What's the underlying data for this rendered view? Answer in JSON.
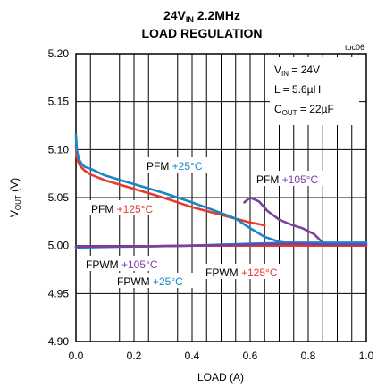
{
  "chart_data": {
    "type": "line",
    "title": {
      "line1_main": "24V",
      "line1_sub": "IN",
      "line1_rest": " 2.2MHz",
      "line2": "LOAD REGULATION"
    },
    "figure_tag": "toc06",
    "xlabel": "LOAD (A)",
    "ylabel": {
      "main": "V",
      "sub": "OUT",
      "rest": " (V)"
    },
    "xlim": [
      0,
      1.0
    ],
    "ylim": [
      4.9,
      5.2
    ],
    "x_ticks": [
      0.0,
      0.2,
      0.4,
      0.6,
      0.8,
      1.0
    ],
    "x_tick_labels": [
      "0.0",
      "0.2",
      "0.4",
      "0.6",
      "0.8",
      "1.0"
    ],
    "y_ticks": [
      4.9,
      4.95,
      5.0,
      5.05,
      5.1,
      5.15,
      5.2
    ],
    "y_tick_labels": [
      "4.90",
      "4.95",
      "5.00",
      "5.05",
      "5.10",
      "5.15",
      "5.20"
    ],
    "grid": true,
    "conditions": [
      {
        "main": "V",
        "sub": "IN",
        "rest": " = 24V"
      },
      {
        "main": "L = 5.6µH",
        "sub": "",
        "rest": ""
      },
      {
        "main": "C",
        "sub": "OUT",
        "rest": " = 22µF"
      }
    ],
    "series": [
      {
        "color": "#e8392a",
        "x": [
          0.0,
          0.003,
          0.01,
          0.02,
          0.03,
          0.05,
          0.1,
          0.2,
          0.3,
          0.4,
          0.5,
          0.55,
          0.6,
          0.62,
          0.65
        ],
        "y": [
          5.105,
          5.092,
          5.085,
          5.081,
          5.078,
          5.074,
          5.068,
          5.059,
          5.05,
          5.04,
          5.032,
          5.028,
          5.024,
          5.023,
          5.021
        ]
      },
      {
        "color": "#1a86c7",
        "x": [
          0.0,
          0.003,
          0.01,
          0.02,
          0.03,
          0.05,
          0.1,
          0.2,
          0.3,
          0.4,
          0.5,
          0.55,
          0.6,
          0.65,
          0.7,
          0.72,
          0.75
        ],
        "y": [
          5.115,
          5.1,
          5.09,
          5.085,
          5.082,
          5.08,
          5.073,
          5.064,
          5.055,
          5.045,
          5.034,
          5.028,
          5.018,
          5.009,
          5.004,
          5.003,
          5.003
        ]
      },
      {
        "color": "#7b3fa0",
        "x": [
          0.58,
          0.6,
          0.63,
          0.66,
          0.7,
          0.74,
          0.78,
          0.82,
          0.84,
          0.86
        ],
        "y": [
          5.045,
          5.05,
          5.046,
          5.036,
          5.027,
          5.022,
          5.018,
          5.012,
          5.006,
          5.0
        ]
      },
      {
        "color": "#e8392a",
        "x": [
          0.0,
          0.1,
          0.2,
          0.4,
          0.6,
          0.75,
          0.85,
          1.0
        ],
        "y": [
          4.999,
          4.999,
          4.999,
          5.0,
          5.0,
          5.0,
          5.0,
          5.0
        ]
      },
      {
        "color": "#1a86c7",
        "x": [
          0.0,
          0.2,
          0.4,
          0.6,
          0.75,
          0.9,
          1.0
        ],
        "y": [
          4.998,
          4.999,
          5.0,
          5.002,
          5.003,
          5.003,
          5.003
        ]
      },
      {
        "color": "#7b3fa0",
        "x": [
          0.0,
          0.2,
          0.4,
          0.6,
          0.75,
          0.86,
          1.0
        ],
        "y": [
          4.999,
          4.999,
          5.0,
          5.001,
          5.002,
          5.001,
          5.001
        ]
      }
    ],
    "annotations": [
      {
        "base": "PFM ",
        "highlight": "+25°C",
        "color": "#1a86c7"
      },
      {
        "base": "PFM ",
        "highlight": "+105°C",
        "color": "#7b3fa0"
      },
      {
        "base": "PFM ",
        "highlight": "+125°C",
        "color": "#e8392a"
      },
      {
        "base": "FPWM ",
        "highlight": "+105°C",
        "color": "#7b3fa0"
      },
      {
        "base": "FPWM ",
        "highlight": "+25°C",
        "color": "#1a86c7"
      },
      {
        "base": "FPWM ",
        "highlight": "+125°C",
        "color": "#e8392a"
      }
    ]
  }
}
